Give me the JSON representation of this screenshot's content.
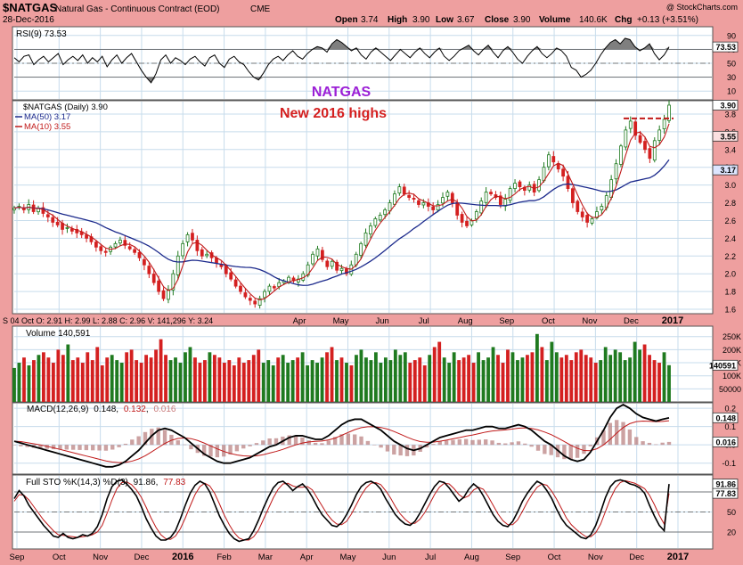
{
  "header": {
    "symbol": "$NATGAS",
    "description": "Natural Gas - Continuous Contract (EOD)",
    "exchange": "CME",
    "date": "28-Dec-2016",
    "watermark": "@ StockCharts.com",
    "quote": {
      "open": "3.74",
      "high": "3.90",
      "low": "3.67",
      "close": "3.90",
      "volume": "140.6K",
      "chg": "+0.13 (+3.51%)"
    },
    "quote_labels": {
      "open": "Open",
      "high": "High",
      "low": "Low",
      "close": "Close",
      "volume": "Volume",
      "chg": "Chg"
    }
  },
  "annotations": {
    "title": "NATGAS",
    "subtitle": "New 2016 highs"
  },
  "colors": {
    "up": "#1f7a1f",
    "down": "#d42020",
    "ma50": "#1c2a8c",
    "ma10": "#c01a1a",
    "annot_title": "#9b1fd6",
    "annot_sub": "#d42020",
    "frame_bg": "#ee9f9f",
    "panel_bg": "#ffffff",
    "grid": "#c7dcec",
    "rsi_fill": "#7f7f7f"
  },
  "chart_data": [
    {
      "type": "line",
      "name": "rsi",
      "label": "RSI(9) 73.53",
      "value": 73.53,
      "ylim": [
        0,
        100
      ],
      "ticks": [
        10,
        30,
        50,
        70,
        90
      ],
      "levels": [
        30,
        70
      ],
      "values": [
        58,
        52,
        60,
        62,
        48,
        55,
        60,
        52,
        58,
        64,
        48,
        55,
        60,
        54,
        62,
        50,
        58,
        52,
        60,
        45,
        55,
        62,
        50,
        58,
        64,
        52,
        40,
        30,
        22,
        35,
        55,
        62,
        50,
        58,
        54,
        48,
        56,
        60,
        52,
        46,
        58,
        62,
        50,
        44,
        56,
        60,
        52,
        48,
        38,
        30,
        26,
        36,
        48,
        56,
        60,
        54,
        62,
        68,
        60,
        56,
        64,
        70,
        74,
        72,
        66,
        78,
        84,
        80,
        74,
        68,
        72,
        62,
        56,
        66,
        72,
        66,
        60,
        54,
        62,
        70,
        64,
        58,
        66,
        72,
        64,
        58,
        66,
        72,
        60,
        54,
        60,
        68,
        72,
        76,
        68,
        62,
        70,
        76,
        66,
        58,
        68,
        74,
        66,
        56,
        50,
        60,
        68,
        74,
        64,
        58,
        64,
        72,
        68,
        60,
        44,
        40,
        30,
        34,
        40,
        50,
        62,
        72,
        80,
        84,
        78,
        86,
        84,
        74,
        68,
        72,
        78,
        64,
        55,
        62,
        73.53
      ]
    },
    {
      "type": "candlestick",
      "name": "price",
      "label": "$NATGAS (Daily) 3.90",
      "last": 3.9,
      "ylim": [
        1.55,
        3.95
      ],
      "ticks": [
        1.6,
        1.8,
        2.0,
        2.2,
        2.4,
        2.6,
        2.8,
        3.0,
        3.2,
        3.4,
        3.6,
        3.8
      ],
      "ma50": {
        "label": "MA(50) 3.17",
        "value": 3.17
      },
      "ma10": {
        "label": "MA(10) 3.55",
        "value": 3.55
      },
      "resistance_level": 3.75,
      "closes": [
        2.74,
        2.76,
        2.72,
        2.78,
        2.7,
        2.74,
        2.68,
        2.64,
        2.58,
        2.55,
        2.5,
        2.52,
        2.48,
        2.46,
        2.44,
        2.4,
        2.36,
        2.3,
        2.26,
        2.24,
        2.3,
        2.34,
        2.38,
        2.32,
        2.28,
        2.24,
        2.18,
        2.1,
        2.0,
        1.9,
        1.8,
        1.72,
        1.82,
        2.0,
        2.2,
        2.34,
        2.44,
        2.38,
        2.26,
        2.2,
        2.22,
        2.18,
        2.12,
        2.08,
        2.0,
        1.94,
        1.86,
        1.8,
        1.74,
        1.7,
        1.66,
        1.72,
        1.8,
        1.86,
        1.84,
        1.9,
        1.92,
        1.96,
        1.92,
        1.94,
        2.0,
        2.1,
        2.22,
        2.28,
        2.16,
        2.08,
        2.14,
        2.04,
        2.06,
        2.0,
        2.1,
        2.22,
        2.34,
        2.46,
        2.54,
        2.62,
        2.66,
        2.72,
        2.8,
        2.9,
        2.98,
        2.9,
        2.86,
        2.84,
        2.78,
        2.8,
        2.76,
        2.72,
        2.78,
        2.86,
        2.92,
        2.8,
        2.66,
        2.58,
        2.54,
        2.6,
        2.7,
        2.82,
        2.92,
        2.9,
        2.86,
        2.78,
        2.84,
        2.96,
        3.02,
        2.98,
        2.94,
        3.0,
        2.92,
        3.06,
        3.2,
        3.34,
        3.26,
        3.18,
        3.1,
        2.96,
        2.8,
        2.7,
        2.64,
        2.58,
        2.62,
        2.7,
        2.76,
        2.88,
        3.06,
        3.24,
        3.44,
        3.62,
        3.72,
        3.56,
        3.48,
        3.4,
        3.3,
        3.5,
        3.62,
        3.74,
        3.9
      ]
    },
    {
      "type": "bar",
      "name": "volume",
      "label": "Volume 140,591",
      "value": 140591,
      "value_label": "140591",
      "ylim": [
        0,
        290000
      ],
      "ticks": [
        50000,
        100000,
        150000,
        200000,
        250000
      ],
      "tick_labels": [
        "50000",
        "100K",
        "150K",
        "200K",
        "250K"
      ],
      "values": [
        130,
        150,
        170,
        140,
        160,
        180,
        190,
        170,
        150,
        200,
        180,
        220,
        160,
        170,
        150,
        190,
        160,
        210,
        140,
        170,
        180,
        160,
        150,
        190,
        200,
        160,
        150,
        180,
        170,
        200,
        240,
        180,
        160,
        170,
        150,
        190,
        210,
        170,
        150,
        160,
        190,
        180,
        170,
        150,
        160,
        140,
        170,
        150,
        160,
        180,
        200,
        150,
        160,
        140,
        170,
        180,
        150,
        160,
        170,
        190,
        140,
        160,
        150,
        170,
        190,
        210,
        160,
        170,
        150,
        140,
        180,
        200,
        170,
        160,
        190,
        150,
        170,
        160,
        200,
        180,
        190,
        150,
        160,
        170,
        140,
        180,
        210,
        230,
        170,
        150,
        190,
        160,
        170,
        180,
        150,
        190,
        160,
        170,
        210,
        180,
        150,
        200,
        190,
        160,
        170,
        180,
        190,
        260,
        210,
        160,
        230,
        190,
        170,
        180,
        160,
        190,
        200,
        180,
        170,
        150,
        160,
        210,
        180,
        200,
        190,
        160,
        170,
        230,
        200,
        220,
        180,
        160,
        150,
        190,
        140.6
      ]
    },
    {
      "type": "line",
      "name": "macd",
      "label": "MACD(12,26,9)",
      "values_text": [
        "0.148",
        "0.132",
        "0.016"
      ],
      "ylim": [
        -0.16,
        0.23
      ],
      "ticks": [
        -0.1,
        0.0,
        0.1,
        0.2
      ],
      "markers": [
        0.148,
        0.016
      ],
      "macd": [
        0.02,
        0.01,
        0.0,
        -0.01,
        -0.02,
        -0.03,
        -0.04,
        -0.05,
        -0.06,
        -0.07,
        -0.08,
        -0.09,
        -0.1,
        -0.11,
        -0.12,
        -0.12,
        -0.11,
        -0.09,
        -0.06,
        -0.03,
        0.01,
        0.05,
        0.08,
        0.09,
        0.08,
        0.06,
        0.04,
        0.01,
        -0.02,
        -0.05,
        -0.07,
        -0.09,
        -0.1,
        -0.1,
        -0.09,
        -0.08,
        -0.07,
        -0.05,
        -0.03,
        -0.01,
        0.0,
        0.02,
        0.04,
        0.05,
        0.05,
        0.04,
        0.03,
        0.03,
        0.05,
        0.08,
        0.11,
        0.13,
        0.14,
        0.14,
        0.12,
        0.1,
        0.08,
        0.05,
        0.02,
        0.0,
        -0.02,
        -0.03,
        -0.02,
        0.0,
        0.02,
        0.04,
        0.05,
        0.06,
        0.07,
        0.08,
        0.08,
        0.09,
        0.1,
        0.1,
        0.09,
        0.09,
        0.1,
        0.11,
        0.1,
        0.08,
        0.05,
        0.02,
        0.0,
        -0.03,
        -0.06,
        -0.08,
        -0.09,
        -0.08,
        -0.04,
        0.02,
        0.08,
        0.15,
        0.2,
        0.22,
        0.2,
        0.17,
        0.15,
        0.14,
        0.13,
        0.14,
        0.148
      ],
      "signal": [
        0.02,
        0.018,
        0.012,
        0.006,
        0.0,
        -0.008,
        -0.016,
        -0.025,
        -0.034,
        -0.043,
        -0.052,
        -0.061,
        -0.07,
        -0.079,
        -0.088,
        -0.094,
        -0.097,
        -0.096,
        -0.089,
        -0.077,
        -0.06,
        -0.038,
        -0.015,
        0.008,
        0.025,
        0.035,
        0.038,
        0.034,
        0.024,
        0.01,
        -0.006,
        -0.022,
        -0.036,
        -0.047,
        -0.055,
        -0.06,
        -0.062,
        -0.06,
        -0.054,
        -0.045,
        -0.036,
        -0.025,
        -0.012,
        0.0,
        0.01,
        0.016,
        0.019,
        0.021,
        0.027,
        0.037,
        0.052,
        0.068,
        0.083,
        0.094,
        0.099,
        0.099,
        0.095,
        0.086,
        0.073,
        0.058,
        0.042,
        0.028,
        0.018,
        0.014,
        0.015,
        0.02,
        0.026,
        0.033,
        0.04,
        0.048,
        0.054,
        0.062,
        0.07,
        0.076,
        0.079,
        0.082,
        0.086,
        0.091,
        0.093,
        0.09,
        0.082,
        0.07,
        0.056,
        0.038,
        0.018,
        -0.002,
        -0.019,
        -0.031,
        -0.032,
        -0.021,
        0.0,
        0.03,
        0.064,
        0.095,
        0.116,
        0.127,
        0.13,
        0.129,
        0.127,
        0.128,
        0.132
      ]
    },
    {
      "type": "line",
      "name": "stochastic",
      "label": "Full STO %K(14,3) %D(3)",
      "values_text": [
        "91.86",
        "77.83"
      ],
      "ylim": [
        0,
        100
      ],
      "ticks": [
        20,
        50,
        80
      ],
      "levels": [
        20,
        50,
        80
      ],
      "markers": [
        91.86,
        77.83
      ],
      "k": [
        70,
        82,
        74,
        60,
        50,
        40,
        30,
        22,
        14,
        12,
        18,
        12,
        10,
        12,
        16,
        14,
        18,
        28,
        46,
        70,
        88,
        96,
        98,
        92,
        84,
        74,
        58,
        40,
        26,
        14,
        8,
        8,
        12,
        22,
        40,
        60,
        78,
        90,
        96,
        92,
        80,
        62,
        44,
        30,
        18,
        10,
        6,
        8,
        10,
        22,
        38,
        56,
        72,
        86,
        94,
        96,
        90,
        82,
        88,
        92,
        84,
        72,
        58,
        46,
        38,
        30,
        28,
        34,
        46,
        60,
        76,
        88,
        94,
        96,
        92,
        84,
        70,
        58,
        46,
        38,
        32,
        30,
        36,
        48,
        62,
        76,
        88,
        96,
        94,
        86,
        76,
        66,
        72,
        84,
        92,
        86,
        74,
        60,
        46,
        36,
        30,
        28,
        36,
        50,
        66,
        78,
        88,
        96,
        92,
        82,
        70,
        54,
        40,
        30,
        24,
        18,
        12,
        10,
        16,
        30,
        50,
        72,
        88,
        96,
        98,
        96,
        92,
        90,
        86,
        78,
        60,
        44,
        30,
        22,
        91.86
      ],
      "d": [
        66,
        76,
        75,
        68,
        58,
        48,
        38,
        30,
        22,
        16,
        15,
        14,
        13,
        12,
        13,
        14,
        16,
        20,
        30,
        48,
        68,
        85,
        94,
        95,
        91,
        83,
        72,
        57,
        41,
        27,
        16,
        10,
        9,
        14,
        25,
        41,
        59,
        76,
        88,
        93,
        89,
        78,
        62,
        45,
        31,
        19,
        11,
        8,
        8,
        13,
        23,
        39,
        55,
        71,
        84,
        92,
        93,
        89,
        87,
        87,
        88,
        83,
        71,
        59,
        47,
        38,
        32,
        31,
        36,
        47,
        61,
        75,
        86,
        93,
        94,
        91,
        82,
        71,
        58,
        47,
        39,
        33,
        33,
        39,
        49,
        62,
        76,
        87,
        93,
        92,
        85,
        76,
        71,
        74,
        83,
        87,
        84,
        73,
        60,
        47,
        37,
        31,
        31,
        38,
        51,
        65,
        77,
        87,
        92,
        90,
        81,
        69,
        55,
        41,
        31,
        24,
        18,
        13,
        13,
        19,
        32,
        51,
        70,
        85,
        94,
        97,
        95,
        93,
        89,
        85,
        75,
        61,
        45,
        32,
        77.83
      ]
    }
  ],
  "axis": {
    "price_x_labels": [
      "Apr",
      "May",
      "Jun",
      "Jul",
      "Aug",
      "Sep",
      "Oct",
      "Nov",
      "Dec",
      "2017"
    ],
    "bottom_x_labels": [
      "Sep",
      "Oct",
      "Nov",
      "Dec",
      "2016",
      "Feb",
      "Mar",
      "Apr",
      "May",
      "Jun",
      "Jul",
      "Aug",
      "Sep",
      "Oct",
      "Nov",
      "Dec",
      "2017"
    ],
    "hover_readout": "S 04 Oct O: 2.91   H: 2.99   L: 2.88   C: 2.96   V: 141,296   Y: 3.24"
  }
}
